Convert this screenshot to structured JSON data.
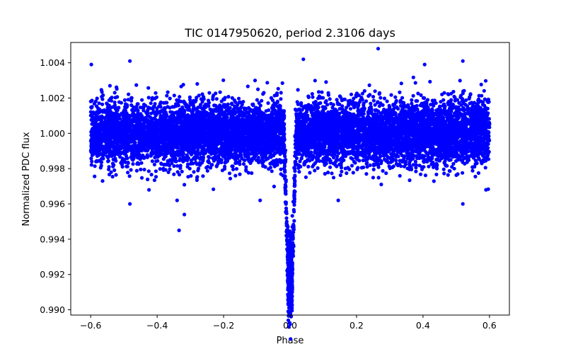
{
  "chart_data": {
    "type": "scatter",
    "title": "TIC 0147950620, period 2.3106 days",
    "xlabel": "Phase",
    "ylabel": "Normalized PDC flux",
    "xlim": [
      -0.66,
      0.66
    ],
    "ylim": [
      0.9897,
      1.00515
    ],
    "xticks": [
      -0.6,
      -0.4,
      -0.2,
      0.0,
      0.2,
      0.4,
      0.6
    ],
    "xtick_labels": [
      "−0.6",
      "−0.4",
      "−0.2",
      "0.0",
      "0.2",
      "0.4",
      "0.6"
    ],
    "yticks": [
      0.99,
      0.992,
      0.994,
      0.996,
      0.998,
      1.0,
      1.002,
      1.004
    ],
    "ytick_labels": [
      "0.990",
      "0.992",
      "0.994",
      "0.996",
      "0.998",
      "1.000",
      "1.002",
      "1.004"
    ],
    "grid": false,
    "legend": "none",
    "series": [
      {
        "color": "#0000ff",
        "x_range": [
          -0.6,
          0.6
        ],
        "baseline": 1.0,
        "scatter_sigma": 0.0009,
        "transit_center": 0.0,
        "transit_min": 0.9904,
        "points": [
          {
            "x": -0.598,
            "y": 1.0039
          },
          {
            "x": -0.482,
            "y": 1.0041
          },
          {
            "x": -0.482,
            "y": 0.996
          },
          {
            "x": -0.334,
            "y": 0.9945
          },
          {
            "x": -0.318,
            "y": 0.9954
          },
          {
            "x": -0.34,
            "y": 0.9962
          },
          {
            "x": -0.09,
            "y": 0.9962
          },
          {
            "x": 0.04,
            "y": 1.0042
          },
          {
            "x": 0.145,
            "y": 0.9962
          },
          {
            "x": 0.265,
            "y": 1.0048
          },
          {
            "x": 0.405,
            "y": 1.0039
          },
          {
            "x": 0.52,
            "y": 1.0041
          },
          {
            "x": 0.52,
            "y": 0.996
          },
          {
            "x": 0.003,
            "y": 0.9904
          },
          {
            "x": 0.001,
            "y": 0.9907
          },
          {
            "x": -0.001,
            "y": 0.9915
          },
          {
            "x": 0.004,
            "y": 0.9918
          }
        ]
      }
    ]
  }
}
